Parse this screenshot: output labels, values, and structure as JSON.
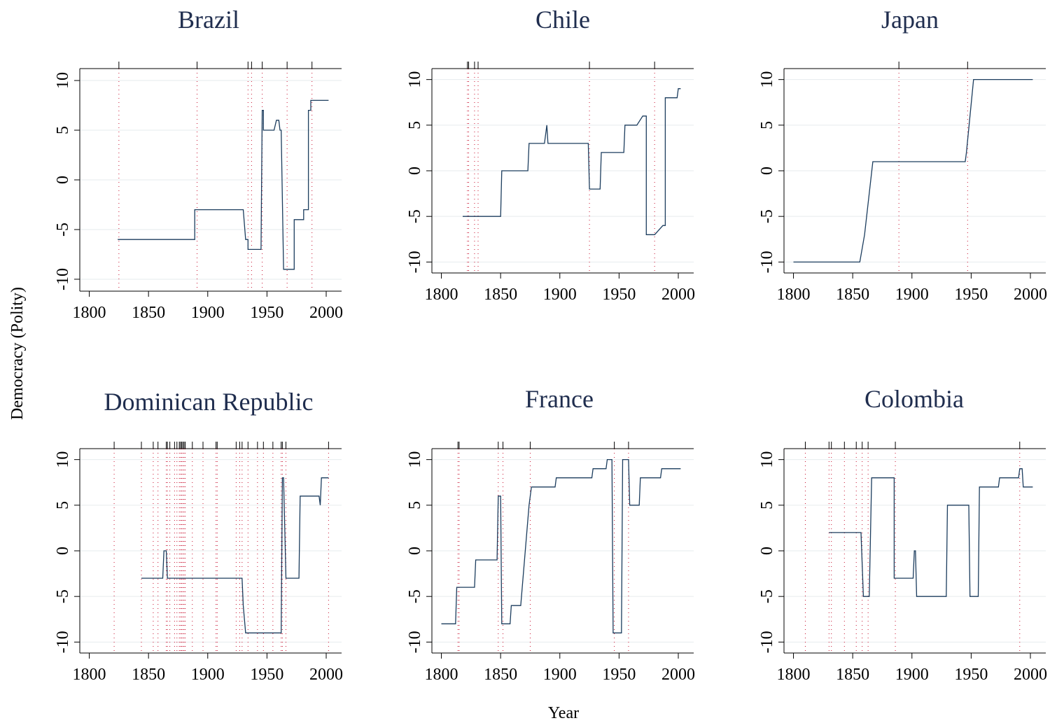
{
  "figure": {
    "ylabel": "Democracy (Polity)",
    "xlabel": "Year"
  },
  "chart_data": [
    {
      "type": "line",
      "title": "Brazil",
      "xlim": [
        1792,
        2013
      ],
      "ylim": [
        -11.2,
        11.2
      ],
      "xticks": [
        1800,
        1850,
        1900,
        1950,
        2000
      ],
      "yticks": [
        -10,
        -5,
        0,
        5,
        10
      ],
      "grid": true,
      "event_years": [
        1825,
        1891,
        1934,
        1937,
        1946,
        1967,
        1988
      ],
      "series": [
        {
          "x": [
            1824,
            1889,
            1889,
            1930,
            1932,
            1934,
            1934,
            1945,
            1946,
            1947,
            1947,
            1956,
            1958,
            1960,
            1961,
            1962,
            1964,
            1964,
            1973,
            1973,
            1981,
            1981,
            1985,
            1985,
            1986,
            1987,
            1987,
            1990,
            1990,
            2002
          ],
          "y": [
            -6,
            -6,
            -3,
            -3,
            -6,
            -6,
            -7,
            -7,
            7,
            7,
            5,
            5,
            6,
            6,
            5,
            5,
            -9,
            -9,
            -9,
            -4,
            -4,
            -3,
            -3,
            7,
            7,
            7,
            8,
            8,
            8,
            8
          ]
        }
      ]
    },
    {
      "type": "line",
      "title": "Chile",
      "xlim": [
        1792,
        2013
      ],
      "ylim": [
        -11.2,
        11.2
      ],
      "xticks": [
        1800,
        1850,
        1900,
        1950,
        2000
      ],
      "yticks": [
        -10,
        -5,
        0,
        5,
        10
      ],
      "grid": true,
      "event_years": [
        1822,
        1823,
        1828,
        1831,
        1925,
        1980
      ],
      "series": [
        {
          "x": [
            1818,
            1850,
            1851,
            1873,
            1874,
            1886,
            1887,
            1889,
            1890,
            1924,
            1925,
            1934,
            1935,
            1954,
            1955,
            1964,
            1965,
            1970,
            1972,
            1973,
            1973,
            1980,
            1980,
            1987,
            1988,
            1989,
            1989,
            1999,
            2000,
            2002
          ],
          "y": [
            -5,
            -5,
            0,
            0,
            3,
            3,
            3,
            5,
            3,
            3,
            -2,
            -2,
            2,
            2,
            5,
            5,
            5,
            6,
            6,
            6,
            -7,
            -7,
            -7,
            -6,
            -6,
            -6,
            8,
            8,
            9,
            9
          ]
        }
      ]
    },
    {
      "type": "line",
      "title": "Japan",
      "xlim": [
        1792,
        2013
      ],
      "ylim": [
        -11.2,
        11.2
      ],
      "xticks": [
        1800,
        1850,
        1900,
        1950,
        2000
      ],
      "yticks": [
        -10,
        -5,
        0,
        5,
        10
      ],
      "grid": true,
      "event_years": [
        1889,
        1947
      ],
      "series": [
        {
          "x": [
            1800,
            1856,
            1860,
            1867,
            1868,
            1945,
            1946,
            1952,
            2002
          ],
          "y": [
            -10,
            -10,
            -7,
            1,
            1,
            1,
            2,
            10,
            10
          ]
        }
      ]
    },
    {
      "type": "line",
      "title": "Dominican Republic",
      "xlim": [
        1792,
        2013
      ],
      "ylim": [
        -11.2,
        11.2
      ],
      "xticks": [
        1800,
        1850,
        1900,
        1950,
        2000
      ],
      "yticks": [
        -10,
        -5,
        0,
        5,
        10
      ],
      "grid": true,
      "event_years": [
        1821,
        1844,
        1854,
        1858,
        1865,
        1866,
        1868,
        1872,
        1874,
        1876,
        1877,
        1878,
        1879,
        1880,
        1881,
        1887,
        1896,
        1907,
        1908,
        1924,
        1927,
        1929,
        1934,
        1942,
        1947,
        1955,
        1962,
        1963,
        1966,
        2002
      ],
      "series": [
        {
          "x": [
            1844,
            1862,
            1863,
            1865,
            1866,
            1928,
            1929,
            1930,
            1932,
            1961,
            1962,
            1963,
            1964,
            1966,
            1966,
            1977,
            1978,
            1994,
            1995,
            1996,
            1996,
            2002
          ],
          "y": [
            -3,
            -3,
            0,
            0,
            -3,
            -3,
            -3,
            -6,
            -9,
            -9,
            -9,
            8,
            8,
            -3,
            -3,
            -3,
            6,
            6,
            5,
            8,
            8,
            8
          ]
        }
      ]
    },
    {
      "type": "line",
      "title": "France",
      "xlim": [
        1792,
        2013
      ],
      "ylim": [
        -11.2,
        11.2
      ],
      "xticks": [
        1800,
        1850,
        1900,
        1950,
        2000
      ],
      "yticks": [
        -10,
        -5,
        0,
        5,
        10
      ],
      "grid": true,
      "event_years": [
        1814,
        1815,
        1848,
        1852,
        1875,
        1946,
        1958
      ],
      "series": [
        {
          "x": [
            1800,
            1812,
            1813,
            1828,
            1829,
            1847,
            1848,
            1850,
            1851,
            1858,
            1859,
            1866,
            1867,
            1874,
            1876,
            1896,
            1897,
            1915,
            1916,
            1927,
            1928,
            1939,
            1940,
            1944,
            1945,
            1952,
            1953,
            1958,
            1959,
            1967,
            1968,
            1985,
            1986,
            2002
          ],
          "y": [
            -8,
            -8,
            -4,
            -4,
            -1,
            -1,
            6,
            6,
            -8,
            -8,
            -6,
            -6,
            -6,
            5,
            7,
            7,
            8,
            8,
            8,
            8,
            9,
            9,
            10,
            10,
            -9,
            -9,
            10,
            10,
            5,
            5,
            8,
            8,
            9,
            9
          ]
        }
      ]
    },
    {
      "type": "line",
      "title": "Colombia",
      "xlim": [
        1792,
        2013
      ],
      "ylim": [
        -11.2,
        11.2
      ],
      "xticks": [
        1800,
        1850,
        1900,
        1950,
        2000
      ],
      "yticks": [
        -10,
        -5,
        0,
        5,
        10
      ],
      "grid": true,
      "event_years": [
        1810,
        1830,
        1832,
        1843,
        1853,
        1858,
        1863,
        1886,
        1991
      ],
      "series": [
        {
          "x": [
            1830,
            1857,
            1859,
            1860,
            1863,
            1864,
            1866,
            1867,
            1884,
            1885,
            1885,
            1897,
            1898,
            1901,
            1902,
            1903,
            1904,
            1929,
            1930,
            1948,
            1949,
            1956,
            1957,
            1973,
            1974,
            1990,
            1991,
            1993,
            1994,
            2002
          ],
          "y": [
            2,
            2,
            -5,
            -5,
            -5,
            -5,
            8,
            8,
            8,
            8,
            -3,
            -3,
            -3,
            -3,
            0,
            0,
            -5,
            -5,
            5,
            5,
            -5,
            -5,
            7,
            7,
            8,
            8,
            9,
            9,
            7,
            7
          ]
        }
      ]
    }
  ]
}
